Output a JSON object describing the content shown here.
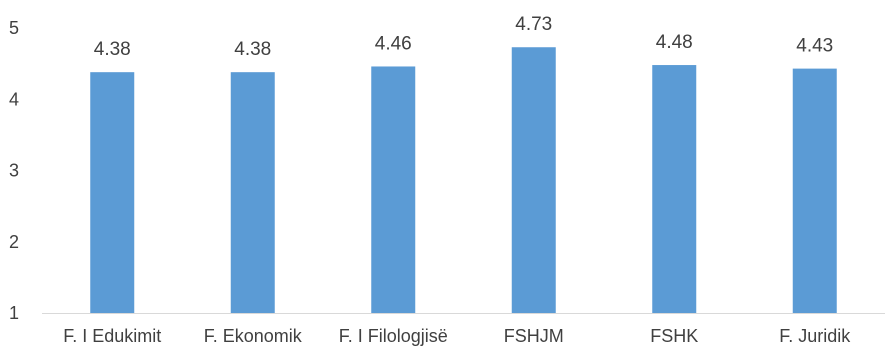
{
  "chart_data": {
    "type": "bar",
    "categories": [
      "F. I Edukimit",
      "F. Ekonomik",
      "F. I Filologjisë",
      "FSHJM",
      "FSHK",
      "F. Juridik"
    ],
    "values": [
      4.38,
      4.38,
      4.46,
      4.73,
      4.48,
      4.43
    ],
    "data_labels": [
      "4.38",
      "4.38",
      "4.46",
      "4.73",
      "4.48",
      "4.43"
    ],
    "title": "",
    "xlabel": "",
    "ylabel": "",
    "ylim": [
      1,
      5
    ],
    "yticks": [
      "1",
      "2",
      "3",
      "4",
      "5"
    ],
    "grid": false,
    "legend": "none",
    "bar_color": "#5B9BD5",
    "text_color": "#404040",
    "axis_color": "#D9D9D9"
  }
}
